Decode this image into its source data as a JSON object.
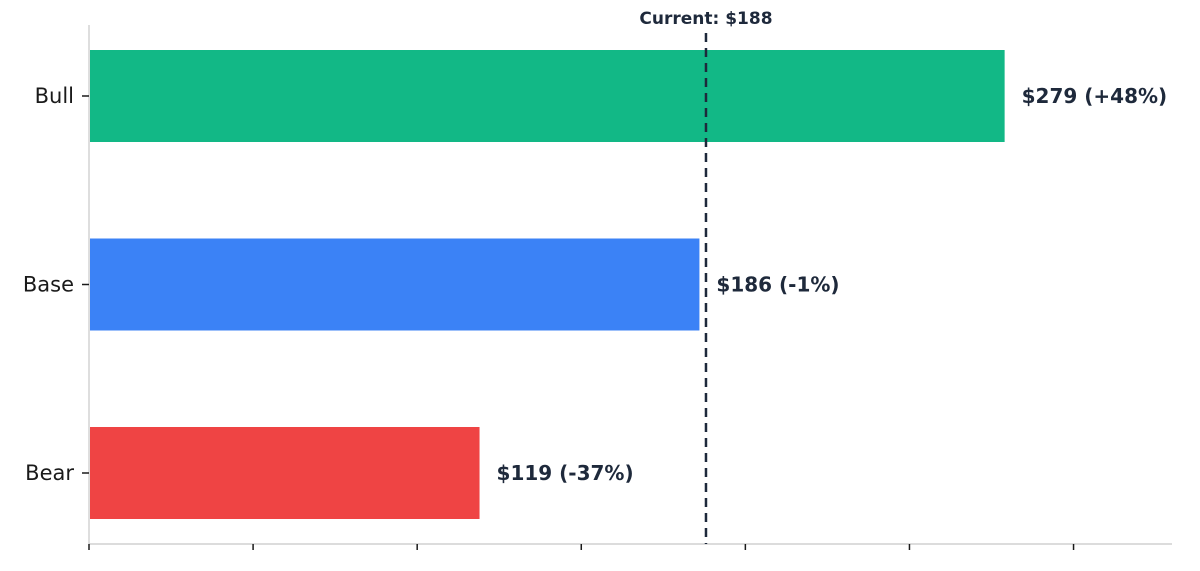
{
  "chart_data": {
    "type": "bar",
    "orientation": "horizontal",
    "categories": [
      "Bull",
      "Base",
      "Bear"
    ],
    "values": [
      279,
      186,
      119
    ],
    "value_labels": [
      "$279  (+48%)",
      "$186  (-1%)",
      "$119  (-37%)"
    ],
    "colors": [
      "#12b886",
      "#3b82f6",
      "#ef4444"
    ],
    "reference_line": {
      "value": 188,
      "label": "Current: $188",
      "color": "#1e293b",
      "style": "dashed"
    },
    "xlim": [
      0,
      330
    ],
    "x_ticks": [
      0,
      50,
      100,
      150,
      200,
      250,
      300
    ],
    "x_tick_labels_shown": false,
    "title": "",
    "xlabel": "",
    "ylabel": "",
    "grid": false,
    "legend": "none"
  }
}
